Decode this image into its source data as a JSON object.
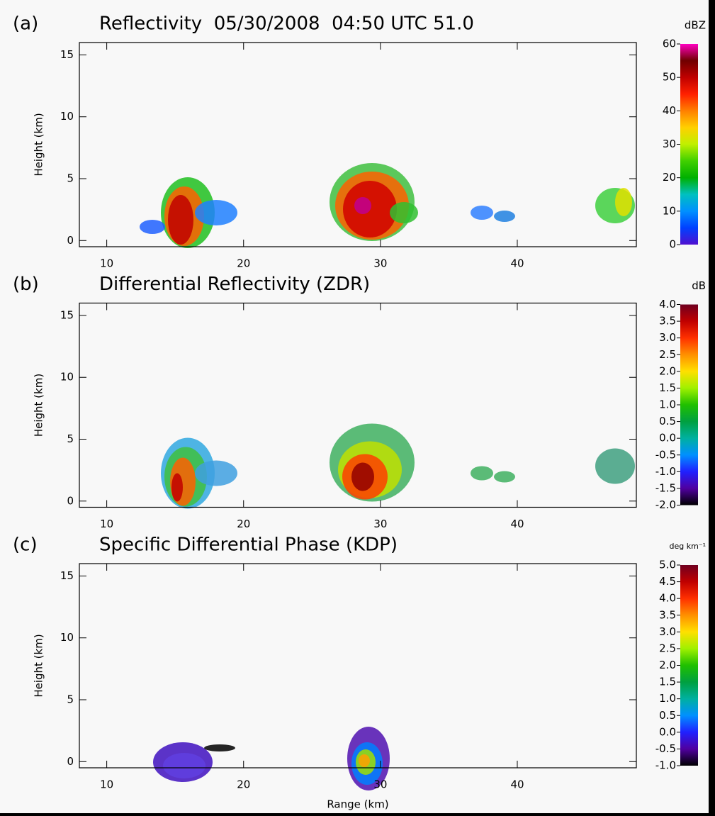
{
  "chart_data": [
    {
      "type": "radar-section",
      "panel_label": "(a)",
      "title": "Reflectivity  05/30/2008  04:50 UTC 51.0",
      "ylabel": "Height (km)",
      "xlim": [
        8,
        48.7
      ],
      "xticks": [
        10,
        20,
        30,
        40
      ],
      "ylim": [
        -0.5,
        16
      ],
      "yticks": [
        0,
        5,
        10,
        15
      ],
      "colorbar_label": "dBZ",
      "colorbar_lim": [
        0,
        60
      ],
      "colorbar_ticks": [
        0,
        10,
        20,
        30,
        40,
        50,
        60
      ],
      "colormap": [
        "#5010d0",
        "#0040ff",
        "#0090ff",
        "#00c0c0",
        "#00b000",
        "#40d000",
        "#c0f000",
        "#ffd000",
        "#ff8000",
        "#ff2000",
        "#c00000",
        "#700000",
        "#ff00c0"
      ]
    },
    {
      "type": "radar-section",
      "panel_label": "(b)",
      "title": "Differential Reflectivity (ZDR)",
      "ylabel": "Height (km)",
      "xlim": [
        8,
        48.7
      ],
      "xticks": [
        10,
        20,
        30,
        40
      ],
      "ylim": [
        -0.5,
        16
      ],
      "yticks": [
        0,
        5,
        10,
        15
      ],
      "colorbar_label": "dB",
      "colorbar_lim": [
        -2,
        4
      ],
      "colorbar_ticks": [
        {
          "value": -2,
          "label": "-2.0"
        },
        {
          "value": -1.5,
          "label": "-1.5"
        },
        {
          "value": -1,
          "label": "-1.0"
        },
        {
          "value": -0.5,
          "label": "-0.5"
        },
        {
          "value": 0,
          "label": "0.0"
        },
        {
          "value": 0.5,
          "label": "0.5"
        },
        {
          "value": 1,
          "label": "1.0"
        },
        {
          "value": 1.5,
          "label": "1.5"
        },
        {
          "value": 2,
          "label": "2.0"
        },
        {
          "value": 2.5,
          "label": "2.5"
        },
        {
          "value": 3,
          "label": "3.0"
        },
        {
          "value": 3.5,
          "label": "3.5"
        },
        {
          "value": 4,
          "label": "4.0"
        }
      ],
      "colormap": [
        "#000000",
        "#5000a0",
        "#2020ff",
        "#0090ff",
        "#00b0a0",
        "#00a040",
        "#20c000",
        "#a0f000",
        "#ffe000",
        "#ff9000",
        "#ff3000",
        "#c00000",
        "#700020"
      ]
    },
    {
      "type": "radar-section",
      "panel_label": "(c)",
      "title": "Specific Differential Phase (KDP)",
      "ylabel": "Height (km)",
      "xlabel": "Range (km)",
      "xlim": [
        8,
        48.7
      ],
      "xticks": [
        10,
        20,
        30,
        40
      ],
      "ylim": [
        -0.5,
        16
      ],
      "yticks": [
        0,
        5,
        10,
        15
      ],
      "colorbar_label": "deg km⁻¹",
      "colorbar_lim": [
        -1,
        5
      ],
      "colorbar_ticks": [
        {
          "value": -1,
          "label": "-1.0"
        },
        {
          "value": -0.5,
          "label": "-0.5"
        },
        {
          "value": 0,
          "label": "0.0"
        },
        {
          "value": 0.5,
          "label": "0.5"
        },
        {
          "value": 1,
          "label": "1.0"
        },
        {
          "value": 1.5,
          "label": "1.5"
        },
        {
          "value": 2,
          "label": "2.0"
        },
        {
          "value": 2.5,
          "label": "2.5"
        },
        {
          "value": 3,
          "label": "3.0"
        },
        {
          "value": 3.5,
          "label": "3.5"
        },
        {
          "value": 4,
          "label": "4.0"
        },
        {
          "value": 4.5,
          "label": "4.5"
        },
        {
          "value": 5,
          "label": "5.0"
        }
      ],
      "colormap": [
        "#000000",
        "#5000a0",
        "#2020ff",
        "#0090ff",
        "#00b0a0",
        "#00a040",
        "#20c000",
        "#a0f000",
        "#ffe000",
        "#ff9000",
        "#ff3000",
        "#c00000",
        "#700020"
      ]
    }
  ]
}
